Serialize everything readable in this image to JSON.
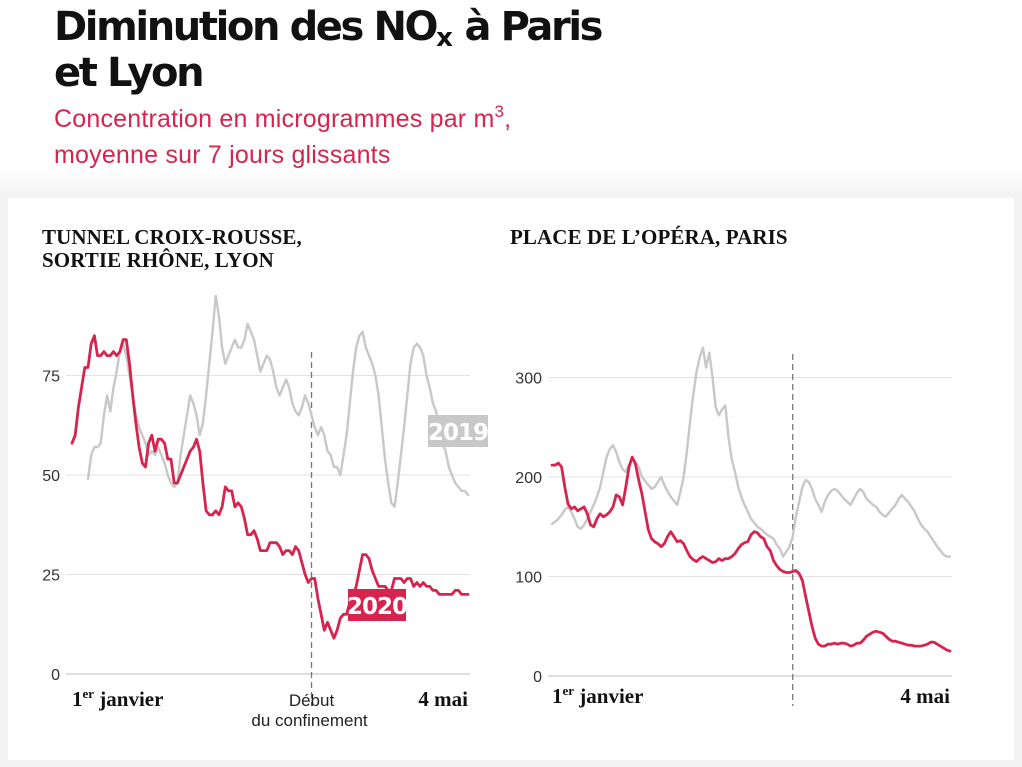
{
  "title_line1": "Diminution des NO",
  "title_sub": "x",
  "title_line1_end": " à Paris",
  "title_line2": "et Lyon",
  "subtitle_line1_pre": "Concentration en microgrammes par m",
  "subtitle_sup": "3",
  "subtitle_line1_post": ",",
  "subtitle_line2": "moyenne sur 7 jours glissants",
  "colors": {
    "y2020": "#d6244f",
    "y2019": "#c8c8c8",
    "subtitle": "#d6244f"
  },
  "chart_data": [
    {
      "type": "line",
      "title_line1": "TUNNEL CROIX-ROUSSE,",
      "title_line2": "SORTIE RHÔNE, LYON",
      "x_start_label_main": "1",
      "x_start_label_sup": "er",
      "x_start_label_rest": " janvier",
      "x_end_label": "4 mai",
      "event_label_line1": "Début",
      "event_label_line2": "du confinement",
      "event_day": 75,
      "ylim": [
        0,
        100
      ],
      "yticks": [
        0,
        25,
        50,
        75
      ],
      "xlim": [
        0,
        124
      ],
      "grid": true,
      "series": [
        {
          "name": "2020",
          "x": [
            0,
            1,
            2,
            3,
            4,
            5,
            6,
            7,
            8,
            9,
            10,
            11,
            12,
            13,
            14,
            15,
            16,
            17,
            18,
            19,
            20,
            21,
            22,
            23,
            24,
            25,
            26,
            27,
            28,
            29,
            30,
            31,
            32,
            33,
            34,
            35,
            36,
            37,
            38,
            39,
            40,
            41,
            42,
            43,
            44,
            45,
            46,
            47,
            48,
            49,
            50,
            51,
            52,
            53,
            54,
            55,
            56,
            57,
            58,
            59,
            60,
            61,
            62,
            63,
            64,
            65,
            66,
            67,
            68,
            69,
            70,
            71,
            72,
            73,
            74,
            75,
            76,
            77,
            78,
            79,
            80,
            81,
            82,
            83,
            84,
            85,
            86,
            87,
            88,
            89,
            90,
            91,
            92,
            93,
            94,
            95,
            96,
            97,
            98,
            99,
            100,
            101,
            102,
            103,
            104,
            105,
            106,
            107,
            108,
            109,
            110,
            111,
            112,
            113,
            114,
            115,
            116,
            117,
            118,
            119,
            120,
            121,
            122,
            123,
            124
          ],
          "values": [
            58,
            60,
            67,
            72,
            77,
            77,
            83,
            85,
            80,
            80,
            81,
            80,
            80,
            81,
            80,
            81,
            84,
            84,
            78,
            70,
            63,
            57,
            53,
            52,
            58,
            60,
            56,
            59,
            59,
            58,
            54,
            54,
            48,
            48,
            50,
            52,
            54,
            56,
            57,
            59,
            56,
            48,
            41,
            40,
            40,
            41,
            40,
            42,
            47,
            46,
            46,
            42,
            43,
            42,
            39,
            35,
            35,
            36,
            34,
            31,
            31,
            31,
            33,
            33,
            33,
            32,
            30,
            31,
            31,
            30,
            32,
            31,
            28,
            25,
            23,
            24,
            24,
            19,
            15,
            11,
            13,
            11,
            9,
            11,
            14,
            15,
            15,
            18,
            20,
            22,
            26,
            30,
            30,
            29,
            26,
            24,
            22,
            22,
            22,
            21,
            21,
            24,
            24,
            24,
            23,
            24,
            24,
            22,
            23,
            22,
            23,
            22,
            22,
            21,
            21,
            20,
            20,
            20,
            20,
            20,
            21,
            21,
            20,
            20,
            20
          ]
        },
        {
          "name": "2019",
          "x": [
            5,
            6,
            7,
            8,
            9,
            10,
            11,
            12,
            13,
            14,
            15,
            16,
            17,
            18,
            19,
            20,
            21,
            22,
            23,
            24,
            25,
            26,
            27,
            28,
            29,
            30,
            31,
            32,
            33,
            34,
            35,
            36,
            37,
            38,
            39,
            40,
            41,
            42,
            43,
            44,
            45,
            46,
            47,
            48,
            49,
            50,
            51,
            52,
            53,
            54,
            55,
            56,
            57,
            58,
            59,
            60,
            61,
            62,
            63,
            64,
            65,
            66,
            67,
            68,
            69,
            70,
            71,
            72,
            73,
            74,
            75,
            76,
            77,
            78,
            79,
            80,
            81,
            82,
            83,
            84,
            85,
            86,
            87,
            88,
            89,
            90,
            91,
            92,
            93,
            94,
            95,
            96,
            97,
            98,
            99,
            100,
            101,
            102,
            103,
            104,
            105,
            106,
            107,
            108,
            109,
            110,
            111,
            112,
            113,
            114,
            115,
            116,
            117,
            118,
            119,
            120,
            121,
            122,
            123,
            124
          ],
          "values": [
            49,
            55,
            57,
            57,
            58,
            65,
            70,
            66,
            72,
            76,
            81,
            83,
            80,
            75,
            70,
            65,
            62,
            60,
            58,
            55,
            56,
            55,
            57,
            55,
            53,
            50,
            48,
            47,
            48,
            55,
            60,
            65,
            70,
            68,
            65,
            60,
            63,
            70,
            78,
            86,
            95,
            90,
            82,
            78,
            80,
            82,
            84,
            82,
            82,
            84,
            88,
            86,
            84,
            80,
            76,
            78,
            80,
            79,
            76,
            72,
            70,
            72,
            74,
            72,
            68,
            66,
            65,
            67,
            70,
            68,
            65,
            62,
            60,
            62,
            60,
            56,
            55,
            52,
            52,
            50,
            55,
            60,
            68,
            76,
            82,
            85,
            86,
            82,
            80,
            78,
            75,
            70,
            62,
            54,
            48,
            43,
            42,
            48,
            55,
            62,
            70,
            78,
            82,
            83,
            82,
            80,
            75,
            72,
            68,
            66,
            62,
            58,
            56,
            52,
            50,
            48,
            47,
            46,
            46,
            45
          ]
        }
      ]
    },
    {
      "type": "line",
      "title_line1": "PLACE DE L’OPÉRA, PARIS",
      "x_start_label_main": "1",
      "x_start_label_sup": "er",
      "x_start_label_rest": " janvier",
      "x_end_label": "4 mai",
      "event_day": 75,
      "ylim": [
        0,
        400
      ],
      "yticks": [
        0,
        100,
        200,
        300
      ],
      "xlim": [
        0,
        124
      ],
      "grid": true,
      "series": [
        {
          "name": "2020",
          "x": [
            0,
            1,
            2,
            3,
            4,
            5,
            6,
            7,
            8,
            9,
            10,
            11,
            12,
            13,
            14,
            15,
            16,
            17,
            18,
            19,
            20,
            21,
            22,
            23,
            24,
            25,
            26,
            27,
            28,
            29,
            30,
            31,
            32,
            33,
            34,
            35,
            36,
            37,
            38,
            39,
            40,
            41,
            42,
            43,
            44,
            45,
            46,
            47,
            48,
            49,
            50,
            51,
            52,
            53,
            54,
            55,
            56,
            57,
            58,
            59,
            60,
            61,
            62,
            63,
            64,
            65,
            66,
            67,
            68,
            69,
            70,
            71,
            72,
            73,
            74,
            75,
            76,
            77,
            78,
            79,
            80,
            81,
            82,
            83,
            84,
            85,
            86,
            87,
            88,
            89,
            90,
            91,
            92,
            93,
            94,
            95,
            96,
            97,
            98,
            99,
            100,
            101,
            102,
            103,
            104,
            105,
            106,
            107,
            108,
            109,
            110,
            111,
            112,
            113,
            114,
            115,
            116,
            117,
            118,
            119,
            120,
            121,
            122,
            123,
            124
          ],
          "values": [
            212,
            212,
            214,
            210,
            190,
            173,
            168,
            170,
            166,
            168,
            170,
            163,
            152,
            150,
            158,
            163,
            160,
            162,
            165,
            170,
            182,
            180,
            172,
            190,
            210,
            220,
            213,
            197,
            183,
            165,
            147,
            138,
            135,
            133,
            130,
            133,
            140,
            145,
            140,
            135,
            136,
            133,
            126,
            120,
            117,
            115,
            118,
            120,
            118,
            116,
            114,
            115,
            118,
            116,
            118,
            118,
            120,
            123,
            128,
            132,
            134,
            135,
            142,
            145,
            144,
            140,
            138,
            130,
            126,
            116,
            111,
            107,
            105,
            104,
            104,
            105,
            106,
            103,
            96,
            80,
            65,
            50,
            38,
            32,
            30,
            30,
            32,
            32,
            33,
            32,
            33,
            33,
            32,
            30,
            31,
            33,
            33,
            36,
            40,
            42,
            44,
            45,
            44,
            43,
            40,
            37,
            35,
            35,
            34,
            33,
            32,
            31,
            31,
            30,
            30,
            30,
            31,
            32,
            34,
            34,
            32,
            30,
            28,
            26,
            25
          ]
        },
        {
          "name": "2019",
          "x": [
            0,
            1,
            2,
            3,
            4,
            5,
            6,
            7,
            8,
            9,
            10,
            11,
            12,
            13,
            14,
            15,
            16,
            17,
            18,
            19,
            20,
            21,
            22,
            23,
            24,
            25,
            26,
            27,
            28,
            29,
            30,
            31,
            32,
            33,
            34,
            35,
            36,
            37,
            38,
            39,
            40,
            41,
            42,
            43,
            44,
            45,
            46,
            47,
            48,
            49,
            50,
            51,
            52,
            53,
            54,
            55,
            56,
            57,
            58,
            59,
            60,
            61,
            62,
            63,
            64,
            65,
            66,
            67,
            68,
            69,
            70,
            71,
            72,
            73,
            74,
            75,
            76,
            77,
            78,
            79,
            80,
            81,
            82,
            83,
            84,
            85,
            86,
            87,
            88,
            89,
            90,
            91,
            92,
            93,
            94,
            95,
            96,
            97,
            98,
            99,
            100,
            101,
            102,
            103,
            104,
            105,
            106,
            107,
            108,
            109,
            110,
            111,
            112,
            113,
            114,
            115,
            116,
            117,
            118,
            119,
            120,
            121,
            122,
            123,
            124
          ],
          "values": [
            153,
            155,
            158,
            162,
            167,
            170,
            165,
            158,
            150,
            148,
            152,
            158,
            165,
            172,
            180,
            190,
            205,
            220,
            228,
            232,
            225,
            215,
            208,
            205,
            212,
            218,
            215,
            210,
            200,
            196,
            192,
            188,
            190,
            195,
            200,
            192,
            186,
            180,
            176,
            172,
            185,
            200,
            225,
            255,
            282,
            305,
            320,
            330,
            310,
            325,
            300,
            270,
            262,
            268,
            272,
            240,
            218,
            205,
            190,
            180,
            172,
            165,
            158,
            154,
            150,
            148,
            145,
            142,
            140,
            138,
            132,
            128,
            120,
            125,
            130,
            140,
            160,
            175,
            190,
            197,
            195,
            188,
            178,
            172,
            165,
            175,
            182,
            186,
            188,
            186,
            182,
            178,
            175,
            172,
            178,
            184,
            188,
            185,
            178,
            175,
            172,
            170,
            165,
            162,
            160,
            164,
            168,
            172,
            178,
            182,
            178,
            175,
            170,
            165,
            158,
            152,
            148,
            145,
            140,
            135,
            130,
            126,
            122,
            120,
            120
          ]
        }
      ]
    }
  ]
}
